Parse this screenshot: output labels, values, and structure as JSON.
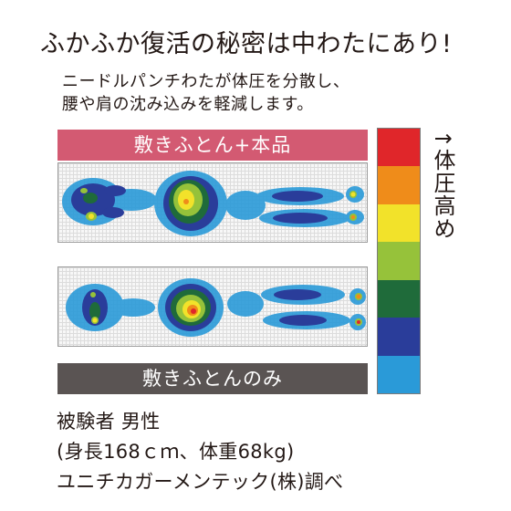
{
  "headline": "ふかふか復活の秘密は中わたにあり!",
  "description": [
    "ニードルパンチわたが体圧を分散し、",
    "腰や肩の沈み込みを軽減します。"
  ],
  "panels": {
    "top_label": "敷きふとん+本品",
    "bottom_label": "敷きふとんのみ"
  },
  "scale": {
    "label": "↑体圧高め",
    "colors": [
      "#e0262a",
      "#ef8c1a",
      "#f2e22a",
      "#96c23a",
      "#1f6b3a",
      "#2a3d9a",
      "#2a9ad8"
    ]
  },
  "footer": [
    "被験者 男性",
    "(身長168ｃｍ、体重68kg)",
    "ユニチカガーメンテック(株)調べ"
  ]
}
